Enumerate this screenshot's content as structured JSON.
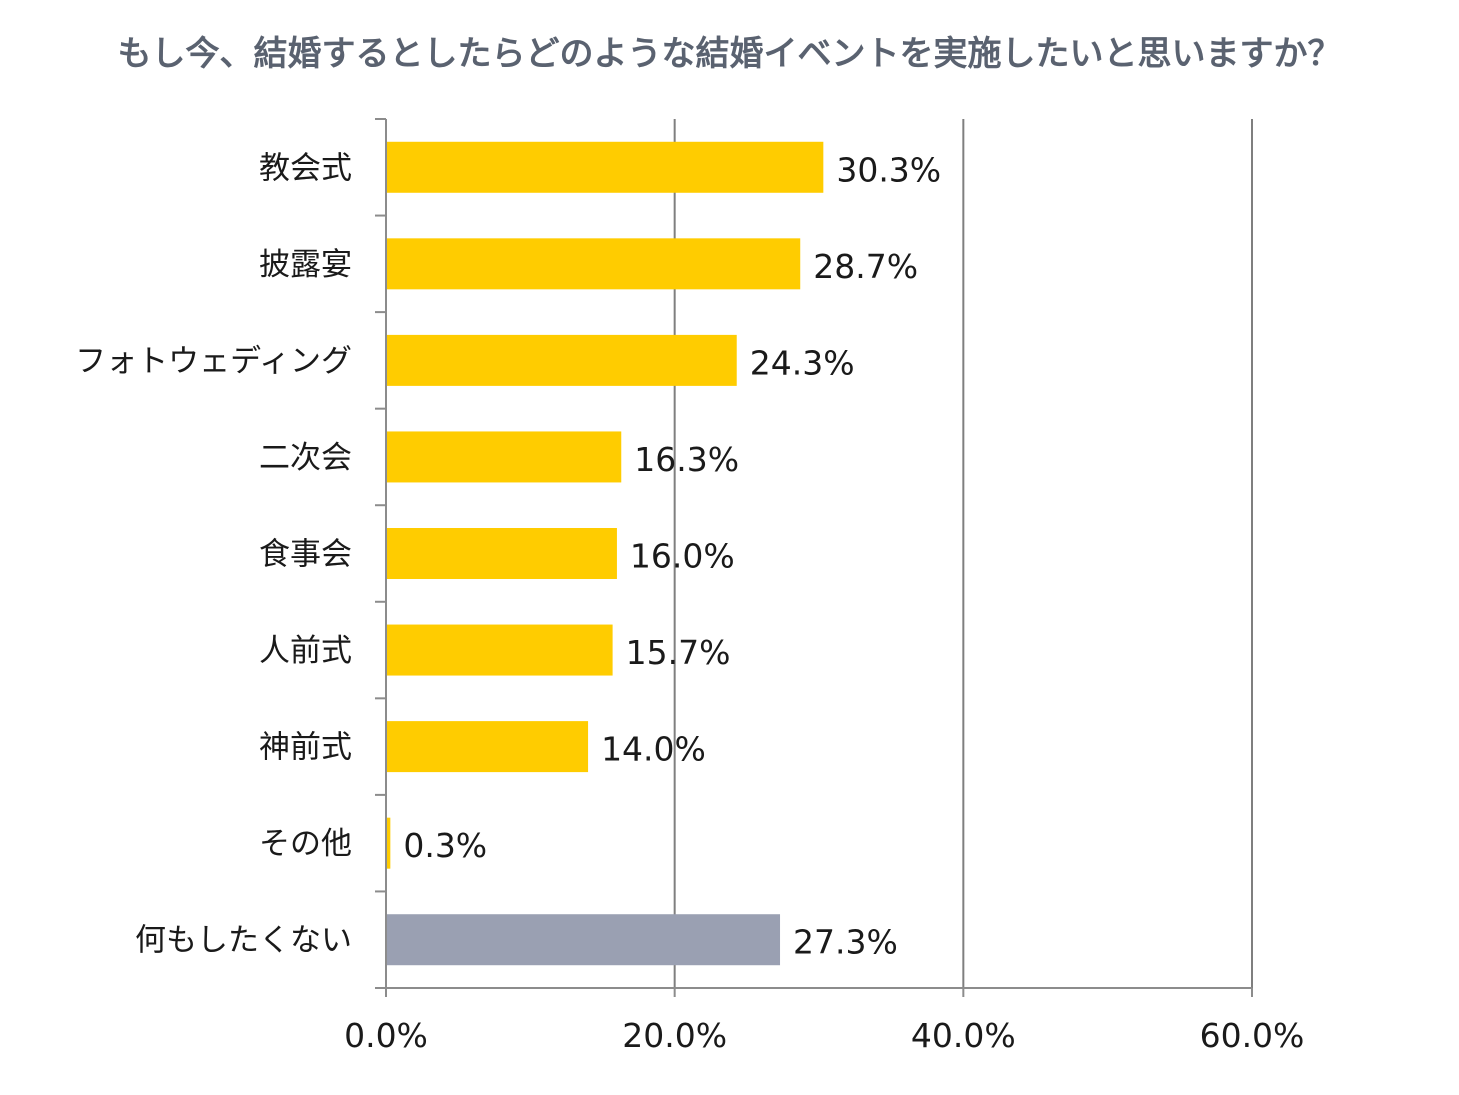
{
  "chart_data": {
    "type": "bar",
    "orientation": "horizontal",
    "title": "もし今、結婚するとしたらどのような結婚イベントを実施したいと思いますか？",
    "categories": [
      "教会式",
      "披露宴",
      "フォトウェディング",
      "二次会",
      "食事会",
      "人前式",
      "神前式",
      "その他",
      "何もしたくない"
    ],
    "values": [
      30.3,
      28.7,
      24.3,
      16.3,
      16.0,
      15.7,
      14.0,
      0.3,
      27.3
    ],
    "value_labels": [
      "30.3%",
      "28.7%",
      "24.3%",
      "16.3%",
      "16.0%",
      "15.7%",
      "14.0%",
      "0.3%",
      "27.3%"
    ],
    "bar_colors": [
      "#ffcc00",
      "#ffcc00",
      "#ffcc00",
      "#ffcc00",
      "#ffcc00",
      "#ffcc00",
      "#ffcc00",
      "#ffcc00",
      "#9aa0b2"
    ],
    "xlim": [
      0,
      60
    ],
    "xticks": [
      0,
      20,
      40,
      60
    ],
    "xtick_labels": [
      "0.0%",
      "20.0%",
      "40.0%",
      "60.0%"
    ],
    "grid": true,
    "legend": "none",
    "xlabel": "",
    "ylabel": ""
  },
  "colors": {
    "title": "#5a6270",
    "highlight_bar": "#ffcc00",
    "neutral_bar": "#9aa0b2",
    "gridline": "#7f7f7f",
    "axis": "#8c8c8c"
  }
}
